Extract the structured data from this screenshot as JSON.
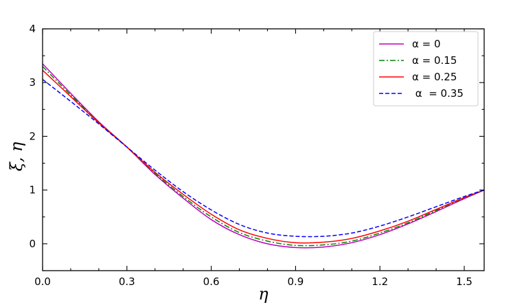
{
  "chart_data": {
    "type": "line",
    "xlabel": "η",
    "ylabel": "ξ, η",
    "xlim": [
      0,
      1.5708
    ],
    "ylim": [
      -0.5,
      4
    ],
    "x_ticks": [
      0.0,
      0.3,
      0.6,
      0.9,
      1.2,
      1.5
    ],
    "x_tick_labels": [
      "0.0",
      "0.3",
      "0.6",
      "0.9",
      "1.2",
      "1.5"
    ],
    "y_ticks": [
      0,
      1,
      2,
      3,
      4
    ],
    "y_tick_labels": [
      "0",
      "1",
      "2",
      "3",
      "4"
    ],
    "minor_ticks": true,
    "grid": false,
    "legend_position": "top-right",
    "x": [
      0.0,
      0.1,
      0.2,
      0.3,
      0.4,
      0.5,
      0.6,
      0.7,
      0.8,
      0.9,
      1.0,
      1.1,
      1.2,
      1.3,
      1.4,
      1.5,
      1.5708
    ],
    "series": [
      {
        "name": "α = 0",
        "color": "#bf00bf",
        "dash": "solid",
        "values": [
          3.35,
          2.8,
          2.27,
          1.8,
          1.29,
          0.85,
          0.45,
          0.17,
          0.0,
          -0.07,
          -0.06,
          0.02,
          0.17,
          0.37,
          0.6,
          0.84,
          1.0
        ]
      },
      {
        "name": "α = 0.15",
        "color": "#008000",
        "dash": "dashdot",
        "values": [
          3.3,
          2.77,
          2.26,
          1.8,
          1.31,
          0.88,
          0.5,
          0.21,
          0.05,
          -0.03,
          -0.02,
          0.05,
          0.2,
          0.39,
          0.62,
          0.85,
          1.0
        ]
      },
      {
        "name": "α = 0.25",
        "color": "#ff0000",
        "dash": "solid",
        "values": [
          3.23,
          2.74,
          2.25,
          1.8,
          1.33,
          0.92,
          0.55,
          0.26,
          0.1,
          0.02,
          0.03,
          0.1,
          0.24,
          0.42,
          0.64,
          0.86,
          1.0
        ]
      },
      {
        "name": " α  = 0.35",
        "color": "#0000ff",
        "dash": "dashed",
        "values": [
          3.06,
          2.65,
          2.23,
          1.8,
          1.37,
          0.97,
          0.63,
          0.36,
          0.2,
          0.14,
          0.14,
          0.2,
          0.33,
          0.5,
          0.69,
          0.88,
          1.0
        ]
      }
    ]
  }
}
